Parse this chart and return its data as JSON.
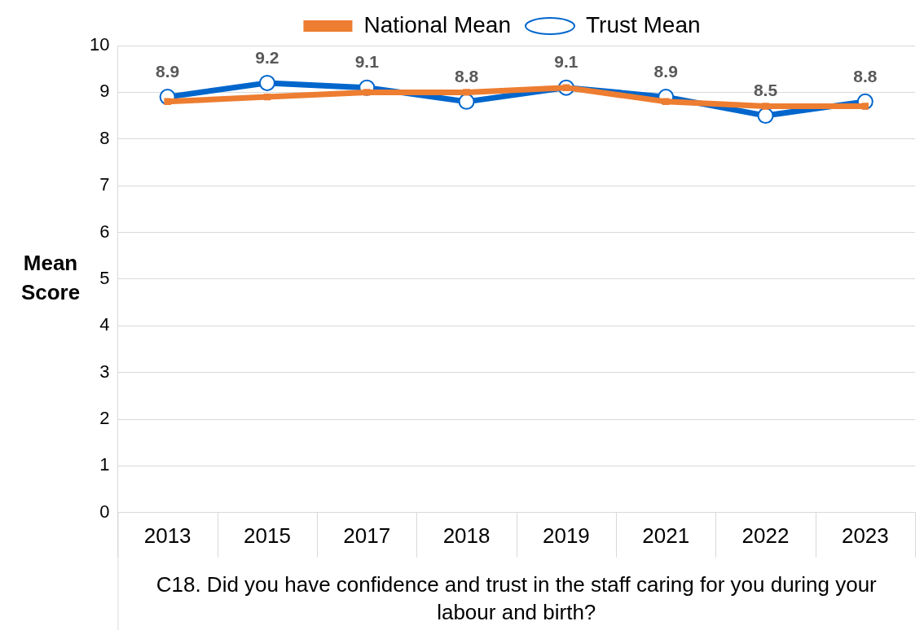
{
  "chart_data": {
    "type": "line",
    "xlabel": "C18. Did you have confidence and trust in the staff caring for you during your labour and birth?",
    "ylabel": "Mean Score",
    "categories": [
      "2013",
      "2015",
      "2017",
      "2018",
      "2019",
      "2021",
      "2022",
      "2023"
    ],
    "series": [
      {
        "name": "Trust Mean",
        "color": "#0066cc",
        "values": [
          8.9,
          9.2,
          9.1,
          8.8,
          9.1,
          8.9,
          8.5,
          8.8
        ],
        "marker": "circle",
        "data_labels": true
      },
      {
        "name": "National Mean",
        "color": "#ed7d31",
        "values": [
          8.8,
          8.9,
          9.0,
          9.0,
          9.1,
          8.8,
          8.7,
          8.7
        ],
        "marker": "square"
      }
    ],
    "ylim": [
      0,
      10
    ],
    "yticks": [
      0,
      1,
      2,
      3,
      4,
      5,
      6,
      7,
      8,
      9,
      10
    ],
    "grid": "y",
    "legend": "top"
  }
}
